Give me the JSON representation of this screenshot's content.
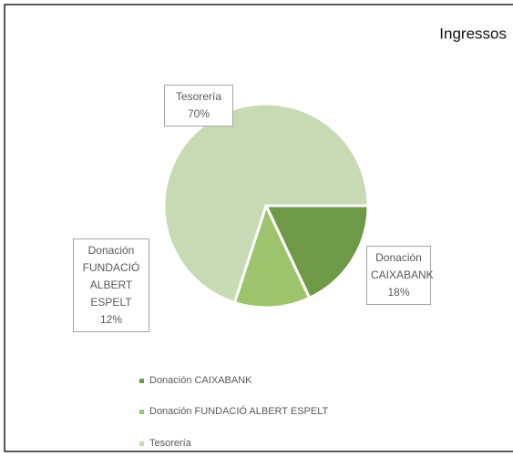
{
  "chart_data": {
    "type": "pie",
    "title": "Ingressos",
    "categories": [
      "Donación CAIXABANK",
      "Donación FUNDACIÓ ALBERT ESPELT",
      "Tesorería"
    ],
    "values": [
      18,
      12,
      70
    ],
    "value_labels": [
      "18%",
      "12%",
      "70%"
    ],
    "colors": [
      "#6e9a47",
      "#9dc46c",
      "#c7dab3"
    ]
  }
}
